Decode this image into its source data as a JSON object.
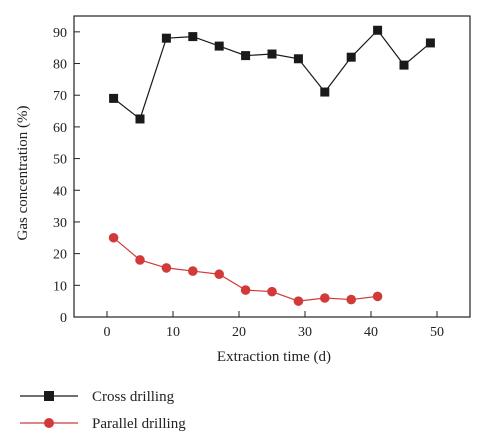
{
  "chart_data": {
    "type": "line",
    "title": "",
    "xlabel": "Extraction time (d)",
    "ylabel": "Gas concentration (%)",
    "xlim": [
      -5,
      55
    ],
    "ylim": [
      0,
      95
    ],
    "xticks": [
      0,
      10,
      20,
      30,
      40,
      50
    ],
    "yticks": [
      0,
      10,
      20,
      30,
      40,
      50,
      60,
      70,
      80,
      90
    ],
    "grid": false,
    "legend_position": "bottom-left (below plot)",
    "series": [
      {
        "name": "Cross drilling",
        "color": "#1a1a1a",
        "marker": "square",
        "x": [
          1,
          5,
          9,
          13,
          17,
          21,
          25,
          29,
          33,
          37,
          41,
          45,
          49
        ],
        "y": [
          69,
          62.5,
          88,
          88.5,
          85.5,
          82.5,
          83,
          81.5,
          71,
          82,
          90.5,
          79.5,
          86.5
        ]
      },
      {
        "name": "Parallel drilling",
        "color": "#d23a3a",
        "marker": "circle",
        "x": [
          1,
          5,
          9,
          13,
          17,
          21,
          25,
          29,
          33,
          37,
          41
        ],
        "y": [
          25,
          18,
          15.5,
          14.5,
          13.5,
          8.5,
          8,
          5,
          6,
          5.5,
          6.5
        ]
      }
    ]
  }
}
